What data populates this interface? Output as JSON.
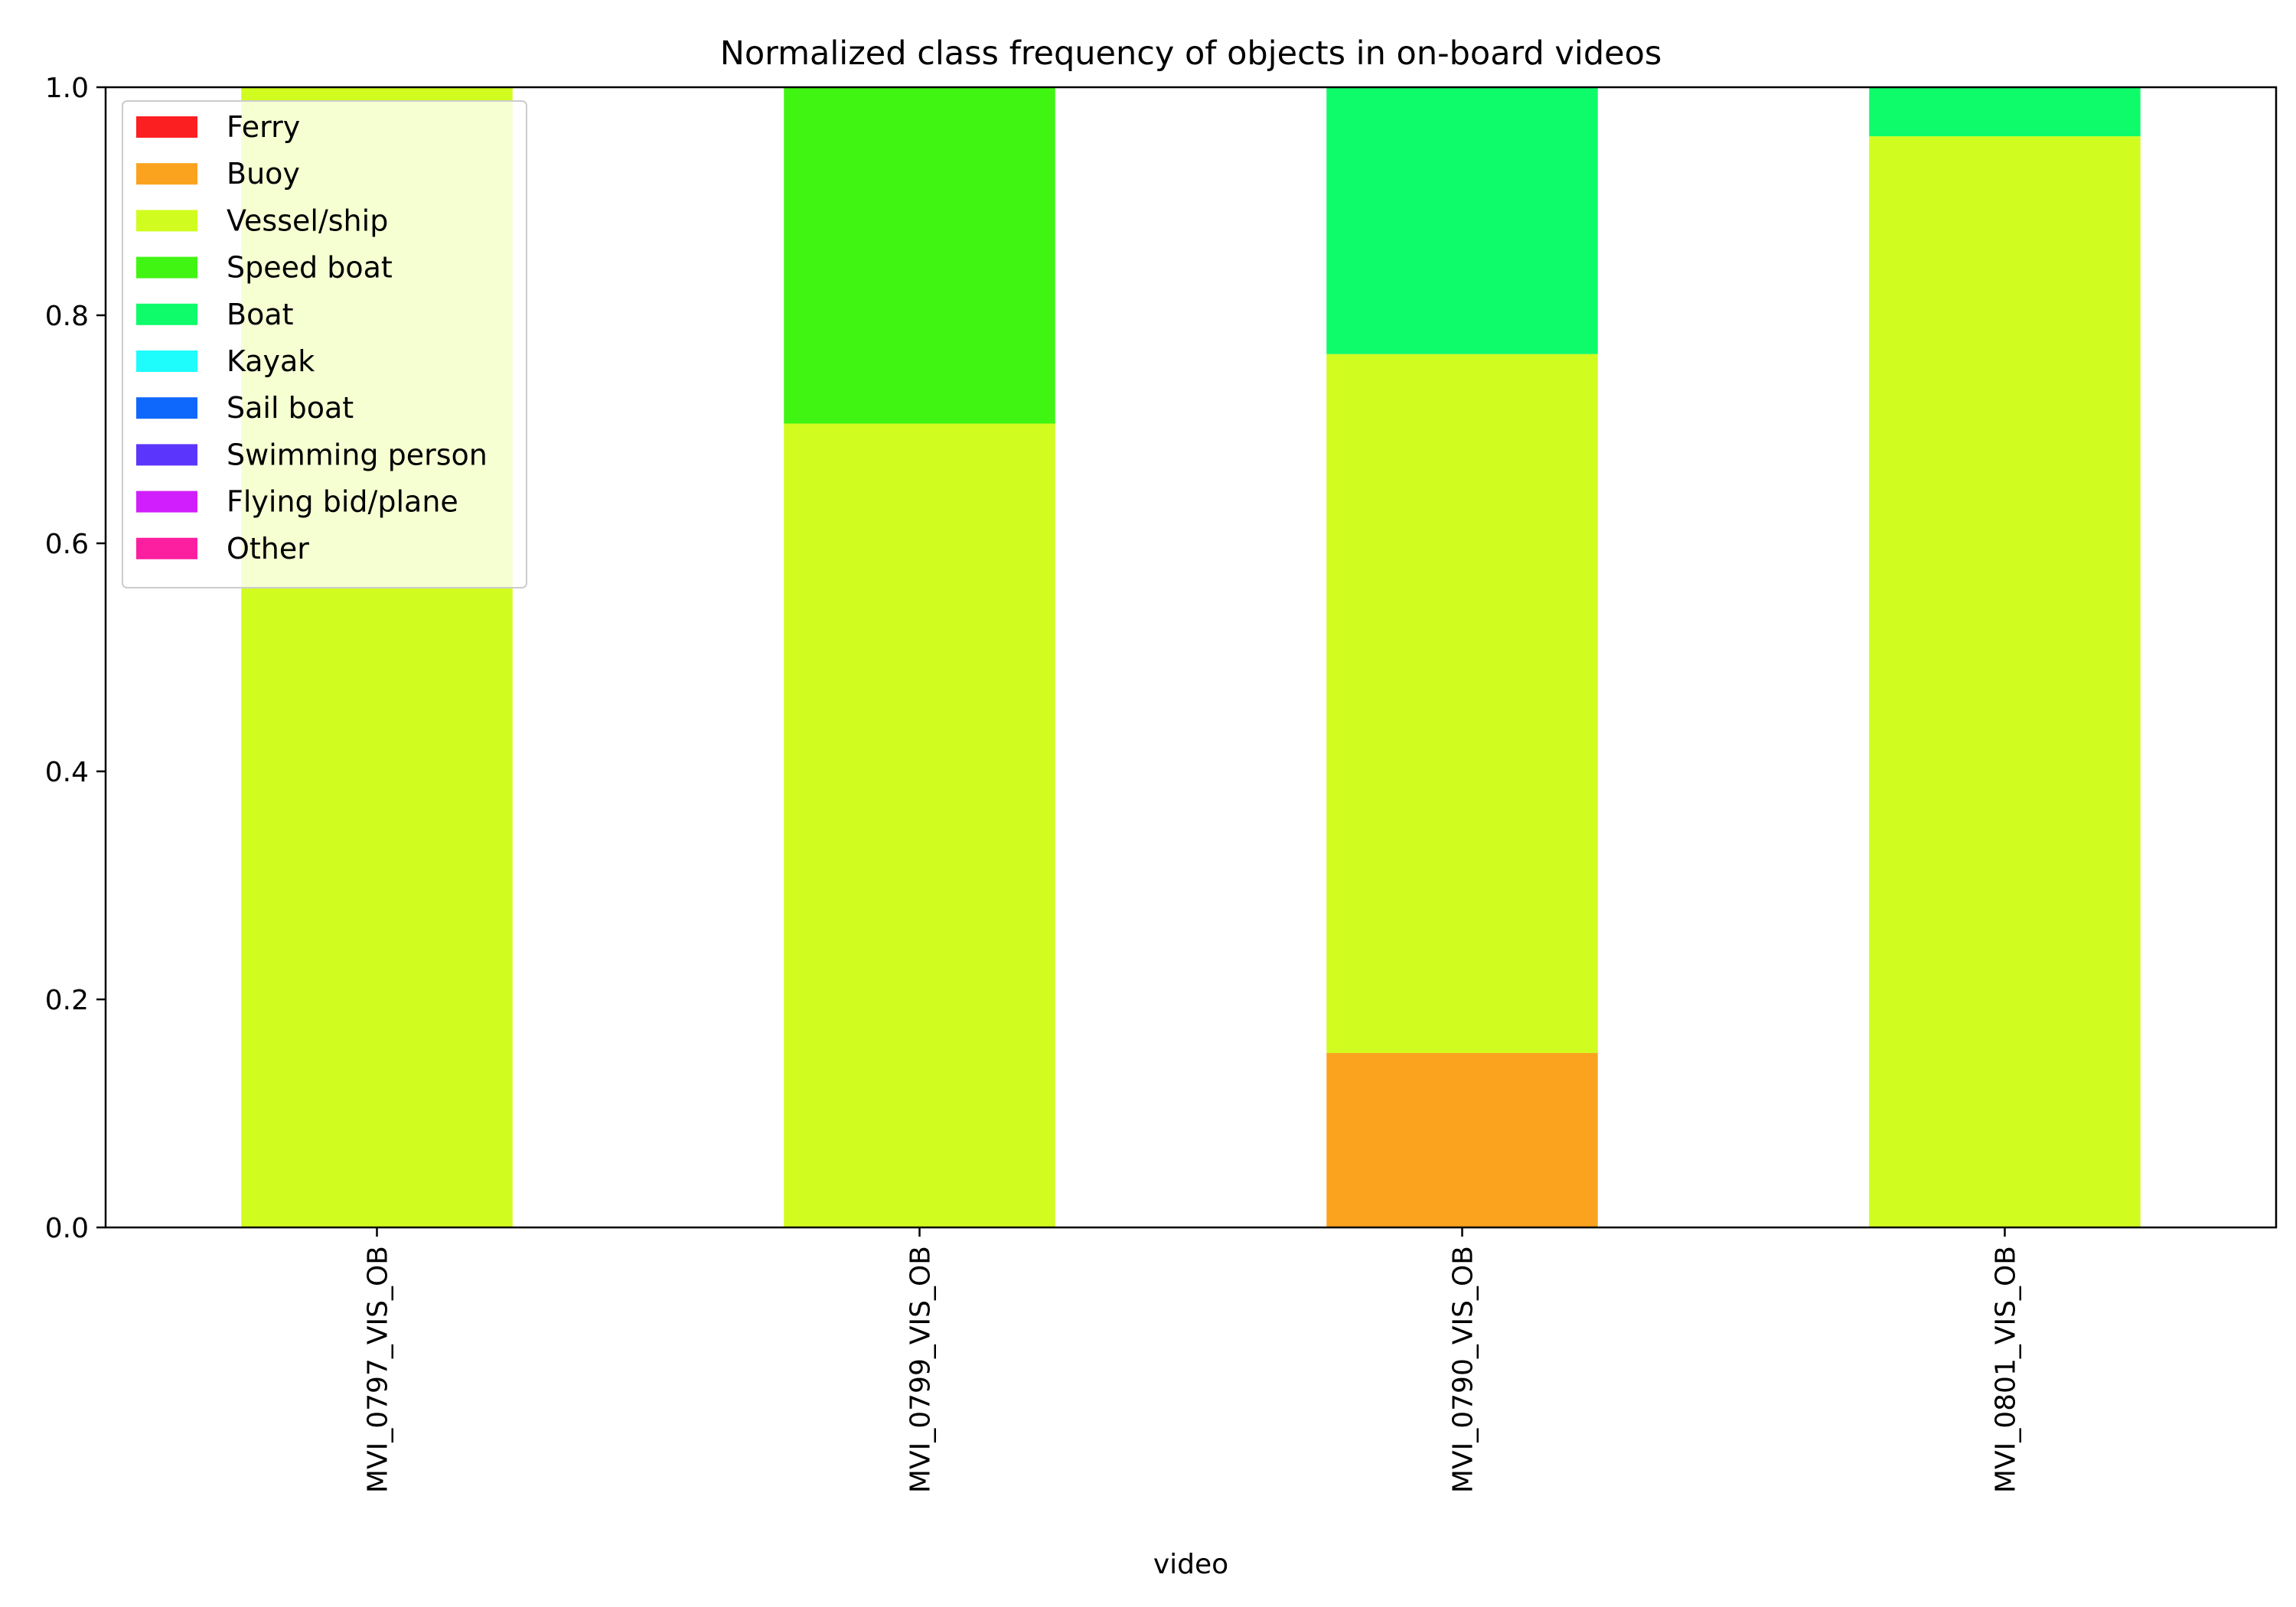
{
  "chart_data": {
    "type": "bar",
    "stacked": true,
    "title": "Normalized class frequency of objects in on-board videos",
    "xlabel": "video",
    "ylabel": "",
    "ylim": [
      0,
      1
    ],
    "yticks": [
      "0.0",
      "0.2",
      "0.4",
      "0.6",
      "0.8",
      "1.0"
    ],
    "categories": [
      "MVI_0797_VIS_OB",
      "MVI_0799_VIS_OB",
      "MVI_0790_VIS_OB",
      "MVI_0801_VIS_OB"
    ],
    "legend_position": "top-left",
    "grid": false,
    "series": [
      {
        "name": "Ferry",
        "color": "#fc1f21",
        "values": [
          0,
          0,
          0,
          0
        ]
      },
      {
        "name": "Buoy",
        "color": "#fba31f",
        "values": [
          0,
          0,
          0.153,
          0
        ]
      },
      {
        "name": "Vessel/ship",
        "color": "#d1fc1f",
        "values": [
          1.0,
          0.705,
          0.613,
          0.957
        ]
      },
      {
        "name": "Speed boat",
        "color": "#41f513",
        "values": [
          0,
          0.295,
          0,
          0
        ]
      },
      {
        "name": "Boat",
        "color": "#0efc6a",
        "values": [
          0,
          0,
          0.234,
          0.043
        ]
      },
      {
        "name": "Kayak",
        "color": "#1ffcfc",
        "values": [
          0,
          0,
          0,
          0
        ]
      },
      {
        "name": "Sail boat",
        "color": "#0e68fc",
        "values": [
          0,
          0,
          0,
          0
        ]
      },
      {
        "name": "Swimming person",
        "color": "#5c35fc",
        "values": [
          0,
          0,
          0,
          0
        ]
      },
      {
        "name": "Flying bid/plane",
        "color": "#d01ffc",
        "values": [
          0,
          0,
          0,
          0
        ]
      },
      {
        "name": "Other",
        "color": "#fc1fa0",
        "values": [
          0,
          0,
          0,
          0
        ]
      }
    ]
  }
}
